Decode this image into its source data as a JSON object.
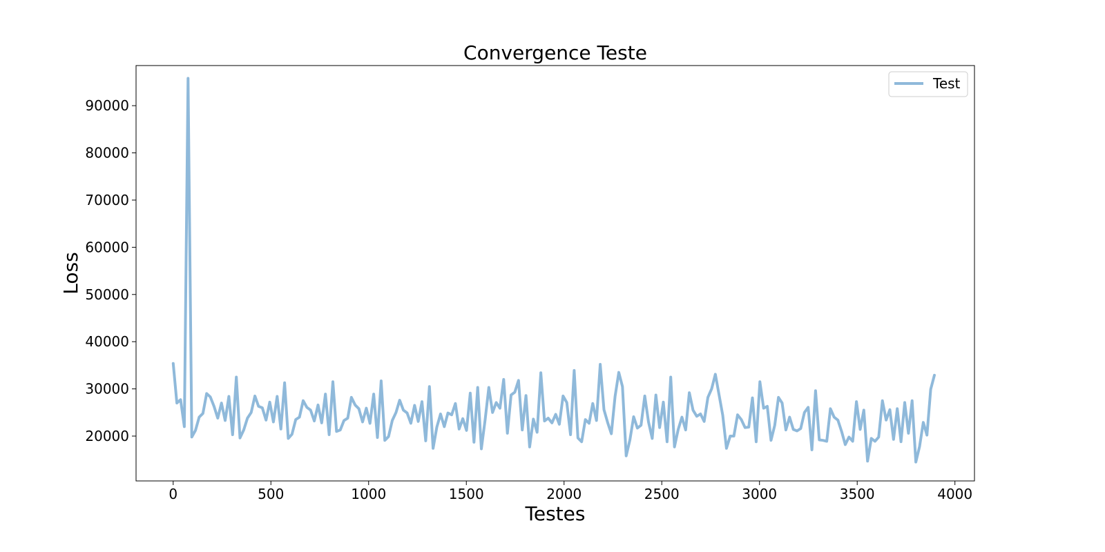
{
  "chart_data": {
    "type": "line",
    "title": "Convergence Teste",
    "xlabel": "Testes",
    "ylabel": "Loss",
    "xlim": [
      -190,
      4100
    ],
    "ylim": [
      10500,
      98500
    ],
    "xticks": [
      0,
      500,
      1000,
      1500,
      2000,
      2500,
      3000,
      3500,
      4000
    ],
    "yticks": [
      20000,
      30000,
      40000,
      50000,
      60000,
      70000,
      80000,
      90000
    ],
    "grid": false,
    "legend_position": "top-right",
    "series": [
      {
        "name": "Test",
        "color": "#8fb9da",
        "x": [
          0,
          19,
          38,
          57,
          76,
          95,
          114,
          133,
          152,
          171,
          190,
          209,
          228,
          247,
          266,
          285,
          304,
          323,
          342,
          361,
          380,
          399,
          418,
          437,
          456,
          475,
          494,
          513,
          532,
          551,
          570,
          589,
          608,
          627,
          646,
          665,
          684,
          703,
          722,
          741,
          760,
          779,
          798,
          817,
          836,
          855,
          874,
          893,
          912,
          931,
          950,
          969,
          988,
          1007,
          1026,
          1045,
          1064,
          1083,
          1102,
          1121,
          1140,
          1159,
          1178,
          1197,
          1216,
          1235,
          1254,
          1273,
          1292,
          1311,
          1330,
          1349,
          1368,
          1387,
          1406,
          1425,
          1444,
          1463,
          1482,
          1501,
          1520,
          1539,
          1558,
          1577,
          1596,
          1615,
          1634,
          1653,
          1672,
          1691,
          1710,
          1729,
          1748,
          1767,
          1786,
          1805,
          1824,
          1843,
          1862,
          1881,
          1900,
          1919,
          1938,
          1957,
          1976,
          1995,
          2014,
          2033,
          2052,
          2071,
          2090,
          2109,
          2128,
          2147,
          2166,
          2185,
          2204,
          2223,
          2242,
          2261,
          2280,
          2299,
          2318,
          2337,
          2356,
          2375,
          2394,
          2413,
          2432,
          2451,
          2470,
          2489,
          2508,
          2527,
          2546,
          2565,
          2584,
          2603,
          2622,
          2641,
          2660,
          2679,
          2698,
          2717,
          2736,
          2755,
          2774,
          2793,
          2812,
          2831,
          2850,
          2869,
          2888,
          2907,
          2926,
          2945,
          2964,
          2983,
          3002,
          3021,
          3040,
          3059,
          3078,
          3097,
          3116,
          3135,
          3154,
          3173,
          3192,
          3211,
          3230,
          3249,
          3268,
          3287,
          3306,
          3325,
          3344,
          3363,
          3382,
          3401,
          3420,
          3439,
          3458,
          3477,
          3496,
          3515,
          3534,
          3553,
          3572,
          3591,
          3610,
          3629,
          3648,
          3667,
          3686,
          3705,
          3724,
          3743,
          3762,
          3781,
          3800,
          3819,
          3838,
          3857,
          3876,
          3895
        ],
        "y": [
          35400,
          27000,
          27700,
          22000,
          95800,
          19800,
          21200,
          24000,
          24800,
          29000,
          28300,
          26300,
          23800,
          27000,
          23300,
          28400,
          20300,
          32500,
          19600,
          21300,
          23800,
          25000,
          28500,
          26300,
          26000,
          23400,
          27200,
          23000,
          28400,
          21500,
          31300,
          19500,
          20400,
          23500,
          24000,
          27500,
          26100,
          25500,
          23200,
          26600,
          22800,
          28900,
          20300,
          31500,
          21000,
          21300,
          23300,
          23800,
          28200,
          26600,
          25800,
          23000,
          25900,
          22700,
          28900,
          19700,
          31700,
          19100,
          19900,
          23300,
          25000,
          27600,
          25500,
          24900,
          22700,
          26500,
          23100,
          27300,
          19000,
          30500,
          17400,
          21900,
          24700,
          22000,
          24900,
          24500,
          26900,
          21500,
          23700,
          21200,
          29100,
          18700,
          30300,
          17300,
          23400,
          30300,
          25000,
          27100,
          25900,
          32000,
          20600,
          28700,
          29300,
          31800,
          21300,
          28600,
          17700,
          23600,
          20800,
          33400,
          23200,
          23800,
          22800,
          24600,
          22500,
          28500,
          27100,
          20300,
          33900,
          19600,
          18800,
          23500,
          22700,
          26900,
          23300,
          35200,
          25600,
          22900,
          20500,
          28400,
          33500,
          30500,
          15800,
          19200,
          24100,
          21700,
          22300,
          28500,
          23000,
          19500,
          28700,
          21800,
          27200,
          18800,
          32500,
          17700,
          21400,
          24000,
          21300,
          29200,
          25500,
          24200,
          24700,
          23100,
          28200,
          30000,
          33100,
          28800,
          24400,
          17400,
          20000,
          20000,
          24500,
          23500,
          21800,
          21900,
          28100,
          18800,
          31500,
          25900,
          26300,
          19100,
          22300,
          28200,
          27000,
          21300,
          24000,
          21400,
          21100,
          21600,
          25000,
          26100,
          17100,
          29600,
          19200,
          19100,
          18900,
          25800,
          24000,
          23400,
          21000,
          18200,
          19800,
          18900,
          27300,
          21400,
          25500,
          14700,
          19500,
          18900,
          19800,
          27500,
          23400,
          25600,
          19300,
          25800,
          18800,
          27100,
          20600,
          27500,
          14500,
          17800,
          22900,
          20200,
          29900,
          32900
        ]
      }
    ]
  }
}
